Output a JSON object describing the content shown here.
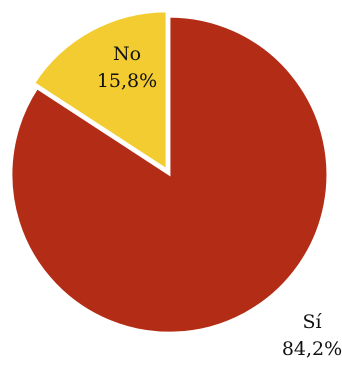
{
  "chart_data": {
    "type": "pie",
    "slices": [
      {
        "name": "Sí",
        "value": 84.2,
        "display": "84,2%",
        "color": "#B32D16"
      },
      {
        "name": "No",
        "value": 15.8,
        "display": "15,8%",
        "color": "#F2CC30"
      }
    ],
    "start_angle_deg": 0,
    "direction": "clockwise",
    "legend": "none"
  }
}
